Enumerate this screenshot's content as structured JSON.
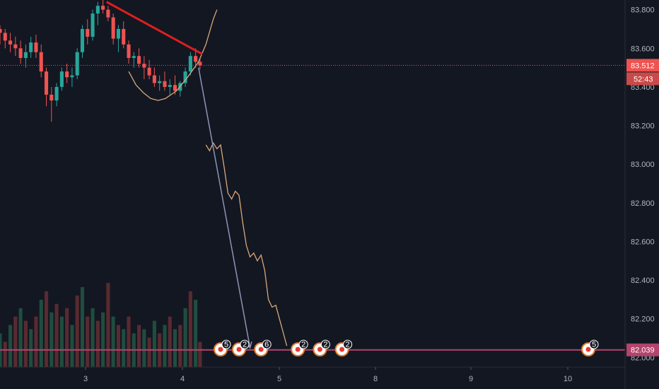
{
  "chart_data": {
    "type": "candlestick",
    "title": "",
    "ylim": [
      81.95,
      83.85
    ],
    "xlim": [
      2.1,
      10.6
    ],
    "y_ticks": [
      "83.800",
      "83.600",
      "83.400",
      "83.200",
      "83.000",
      "82.800",
      "82.600",
      "82.400",
      "82.200",
      "82.000"
    ],
    "y_tick_values": [
      83.8,
      83.6,
      83.4,
      83.2,
      83.0,
      82.8,
      82.6,
      82.4,
      82.2,
      82.0
    ],
    "x_ticks": [
      "3",
      "4",
      "5",
      "8",
      "9",
      "10"
    ],
    "x_tick_values": [
      3,
      4,
      5,
      8,
      9,
      10
    ],
    "current_price": "83.512",
    "current_price_value": 83.512,
    "countdown": "52:43",
    "target_price": "82.039",
    "target_price_value": 82.039,
    "trendline": [
      [
        3.55,
        83.84
      ],
      [
        4.85,
        83.57
      ]
    ],
    "arrow": [
      [
        4.8,
        83.5
      ],
      [
        5.5,
        82.05
      ]
    ],
    "cup_curve": [
      [
        3.85,
        83.48
      ],
      [
        3.95,
        83.41
      ],
      [
        4.05,
        83.37
      ],
      [
        4.15,
        83.34
      ],
      [
        4.25,
        83.33
      ],
      [
        4.35,
        83.34
      ],
      [
        4.5,
        83.38
      ],
      [
        4.65,
        83.45
      ],
      [
        4.8,
        83.53
      ],
      [
        4.9,
        83.62
      ],
      [
        5.0,
        83.75
      ],
      [
        5.05,
        83.8
      ]
    ],
    "projection_path": [
      [
        4.9,
        83.1
      ],
      [
        4.95,
        83.07
      ],
      [
        5.0,
        83.11
      ],
      [
        5.05,
        83.08
      ],
      [
        5.1,
        83.1
      ],
      [
        5.15,
        82.98
      ],
      [
        5.2,
        82.85
      ],
      [
        5.25,
        82.82
      ],
      [
        5.3,
        82.86
      ],
      [
        5.35,
        82.84
      ],
      [
        5.4,
        82.7
      ],
      [
        5.45,
        82.58
      ],
      [
        5.5,
        82.52
      ],
      [
        5.55,
        82.54
      ],
      [
        5.6,
        82.5
      ],
      [
        5.65,
        82.53
      ],
      [
        5.7,
        82.45
      ],
      [
        5.75,
        82.3
      ],
      [
        5.8,
        82.26
      ],
      [
        5.85,
        82.27
      ],
      [
        5.9,
        82.2
      ],
      [
        6.0,
        82.06
      ]
    ],
    "candles": [
      [
        2.1,
        83.7,
        83.72,
        83.62,
        83.68
      ],
      [
        2.17,
        83.68,
        83.7,
        83.6,
        83.64
      ],
      [
        2.24,
        83.64,
        83.68,
        83.58,
        83.62
      ],
      [
        2.31,
        83.62,
        83.66,
        83.56,
        83.6
      ],
      [
        2.38,
        83.6,
        83.64,
        83.52,
        83.55
      ],
      [
        2.45,
        83.55,
        83.62,
        83.5,
        83.58
      ],
      [
        2.52,
        83.58,
        83.66,
        83.55,
        83.63
      ],
      [
        2.59,
        83.63,
        83.67,
        83.55,
        83.58
      ],
      [
        2.66,
        83.58,
        83.62,
        83.45,
        83.48
      ],
      [
        2.73,
        83.48,
        83.5,
        83.3,
        83.36
      ],
      [
        2.8,
        83.36,
        83.4,
        83.22,
        83.33
      ],
      [
        2.87,
        83.33,
        83.42,
        83.3,
        83.4
      ],
      [
        2.94,
        83.4,
        83.5,
        83.38,
        83.48
      ],
      [
        3.01,
        83.48,
        83.52,
        83.42,
        83.45
      ],
      [
        3.08,
        83.45,
        83.5,
        83.4,
        83.46
      ],
      [
        3.15,
        83.46,
        83.6,
        83.44,
        83.58
      ],
      [
        3.22,
        83.58,
        83.72,
        83.55,
        83.7
      ],
      [
        3.29,
        83.7,
        83.75,
        83.62,
        83.66
      ],
      [
        3.36,
        83.66,
        83.8,
        83.64,
        83.78
      ],
      [
        3.43,
        83.78,
        83.84,
        83.72,
        83.82
      ],
      [
        3.5,
        83.82,
        83.85,
        83.78,
        83.8
      ],
      [
        3.57,
        83.8,
        83.82,
        83.74,
        83.76
      ],
      [
        3.64,
        83.76,
        83.78,
        83.62,
        83.65
      ],
      [
        3.71,
        83.65,
        83.72,
        83.58,
        83.7
      ],
      [
        3.78,
        83.7,
        83.74,
        83.6,
        83.62
      ],
      [
        3.85,
        83.62,
        83.64,
        83.52,
        83.55
      ],
      [
        3.92,
        83.55,
        83.58,
        83.5,
        83.56
      ],
      [
        3.99,
        83.56,
        83.6,
        83.5,
        83.52
      ],
      [
        4.06,
        83.52,
        83.56,
        83.44,
        83.5
      ],
      [
        4.13,
        83.5,
        83.54,
        83.44,
        83.46
      ],
      [
        4.2,
        83.46,
        83.5,
        83.4,
        83.42
      ],
      [
        4.27,
        83.42,
        83.46,
        83.38,
        83.43
      ],
      [
        4.34,
        83.43,
        83.48,
        83.38,
        83.4
      ],
      [
        4.41,
        83.4,
        83.44,
        83.36,
        83.41
      ],
      [
        4.48,
        83.41,
        83.46,
        83.36,
        83.38
      ],
      [
        4.55,
        83.38,
        83.43,
        83.35,
        83.42
      ],
      [
        4.62,
        83.42,
        83.5,
        83.4,
        83.48
      ],
      [
        4.69,
        83.48,
        83.58,
        83.46,
        83.56
      ],
      [
        4.76,
        83.56,
        83.6,
        83.5,
        83.53
      ],
      [
        4.82,
        83.53,
        83.55,
        83.49,
        83.512
      ]
    ],
    "volume": [
      [
        2.1,
        0.4,
        "up"
      ],
      [
        2.17,
        0.3,
        "down"
      ],
      [
        2.24,
        0.5,
        "up"
      ],
      [
        2.31,
        0.6,
        "down"
      ],
      [
        2.38,
        0.7,
        "up"
      ],
      [
        2.45,
        0.55,
        "down"
      ],
      [
        2.52,
        0.45,
        "up"
      ],
      [
        2.59,
        0.6,
        "down"
      ],
      [
        2.66,
        0.8,
        "up"
      ],
      [
        2.73,
        0.9,
        "down"
      ],
      [
        2.8,
        0.65,
        "up"
      ],
      [
        2.87,
        0.75,
        "down"
      ],
      [
        2.94,
        0.6,
        "up"
      ],
      [
        3.01,
        0.7,
        "down"
      ],
      [
        3.08,
        0.5,
        "up"
      ],
      [
        3.15,
        0.85,
        "down"
      ],
      [
        3.22,
        0.95,
        "up"
      ],
      [
        3.29,
        0.6,
        "down"
      ],
      [
        3.36,
        0.7,
        "up"
      ],
      [
        3.43,
        0.55,
        "down"
      ],
      [
        3.5,
        0.65,
        "up"
      ],
      [
        3.57,
        1.0,
        "down"
      ],
      [
        3.64,
        0.6,
        "up"
      ],
      [
        3.71,
        0.5,
        "down"
      ],
      [
        3.78,
        0.45,
        "up"
      ],
      [
        3.85,
        0.6,
        "down"
      ],
      [
        3.92,
        0.4,
        "up"
      ],
      [
        3.99,
        0.5,
        "down"
      ],
      [
        4.06,
        0.45,
        "up"
      ],
      [
        4.13,
        0.35,
        "down"
      ],
      [
        4.2,
        0.55,
        "up"
      ],
      [
        4.27,
        0.4,
        "down"
      ],
      [
        4.34,
        0.5,
        "up"
      ],
      [
        4.41,
        0.6,
        "down"
      ],
      [
        4.48,
        0.45,
        "up"
      ],
      [
        4.55,
        0.5,
        "down"
      ],
      [
        4.62,
        0.7,
        "up"
      ],
      [
        4.69,
        0.9,
        "down"
      ],
      [
        4.76,
        0.8,
        "up"
      ],
      [
        4.82,
        0.3,
        "down"
      ]
    ],
    "event_badges": [
      {
        "x": 5.1,
        "count": "5"
      },
      {
        "x": 5.35,
        "count": "2"
      },
      {
        "x": 5.65,
        "count": "6"
      },
      {
        "x": 6.15,
        "count": "2"
      },
      {
        "x": 6.45,
        "count": "2"
      },
      {
        "x": 6.75,
        "count": "2"
      },
      {
        "x": 10.1,
        "count": "5"
      }
    ],
    "grid": false,
    "colors": {
      "background": "#131722",
      "up": "#26a69a",
      "down": "#ef5350",
      "trendline": "#e01e1e",
      "arrow": "#8d93b8",
      "drawing": "#d9a77a",
      "price_line": "#ef5350",
      "target_line": "#b3446c",
      "axis_text": "#b2b5be",
      "volume_up": "#1f4d3f",
      "volume_down": "#5a2a30"
    }
  }
}
